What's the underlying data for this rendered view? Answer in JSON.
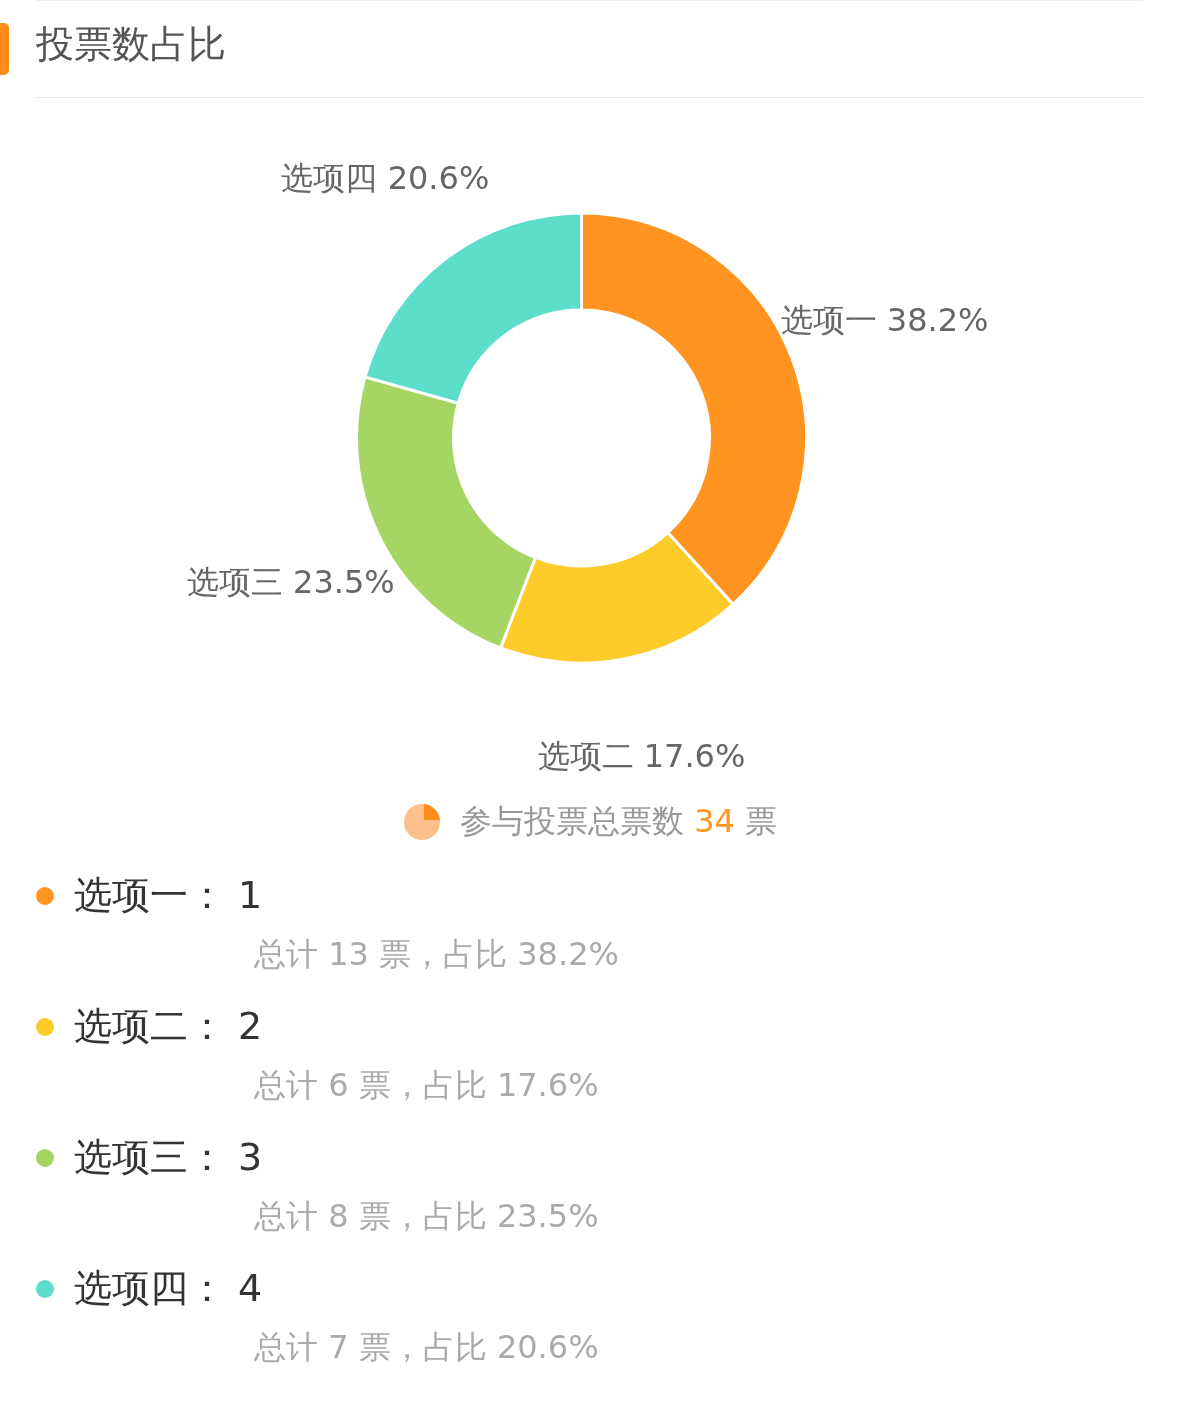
{
  "chart_data": {
    "type": "donut",
    "title": "投票数占比",
    "categories": [
      "选项一",
      "选项二",
      "选项三",
      "选项四"
    ],
    "values": [
      38.2,
      17.6,
      23.5,
      20.6
    ],
    "value_labels": [
      "38.2%",
      "17.6%",
      "23.5%",
      "20.6%"
    ],
    "colors": [
      "#ff9520",
      "#fdcb2a",
      "#a5d562",
      "#5ddecb"
    ],
    "annotations": [
      "参与投票总票数 34 票",
      "选项一： 1",
      "总计 13 票，占比 38.2%",
      "选项二： 2",
      "总计 6 票，占比 17.6%",
      "选项三： 3",
      "总计 8 票，占比 23.5%",
      "选项四： 4",
      "总计 7 票，占比 20.6%"
    ]
  }
}
